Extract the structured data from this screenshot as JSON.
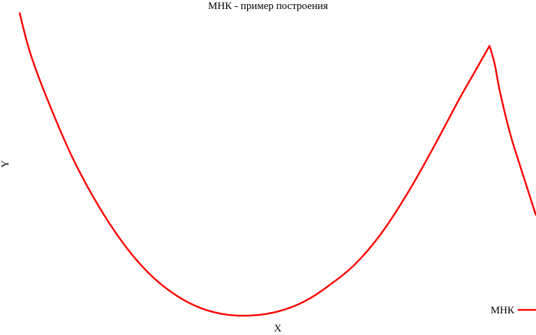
{
  "chart_data": {
    "type": "line",
    "title": "МНК - пример построения",
    "xlabel": "X",
    "ylabel": "Y",
    "xlim": [
      0,
      1
    ],
    "ylim": [
      0,
      1
    ],
    "grid": false,
    "legend": {
      "placement": "bottom-right",
      "entries": [
        "МНК"
      ]
    },
    "axes_visible": false,
    "series": [
      {
        "name": "МНК",
        "color": "#ff0000",
        "x": [
          0.0,
          0.02,
          0.05,
          0.1,
          0.15,
          0.2,
          0.25,
          0.3,
          0.35,
          0.4,
          0.45,
          0.5,
          0.55,
          0.6,
          0.65,
          0.7,
          0.75,
          0.8,
          0.85,
          0.88,
          0.9,
          0.91,
          0.92,
          0.93,
          0.95,
          0.97,
          1.0
        ],
        "y": [
          1.0,
          0.87,
          0.73,
          0.53,
          0.37,
          0.24,
          0.14,
          0.07,
          0.025,
          0.003,
          0.0,
          0.013,
          0.045,
          0.1,
          0.17,
          0.27,
          0.4,
          0.55,
          0.71,
          0.8,
          0.86,
          0.89,
          0.83,
          0.74,
          0.6,
          0.49,
          0.33
        ]
      }
    ]
  }
}
